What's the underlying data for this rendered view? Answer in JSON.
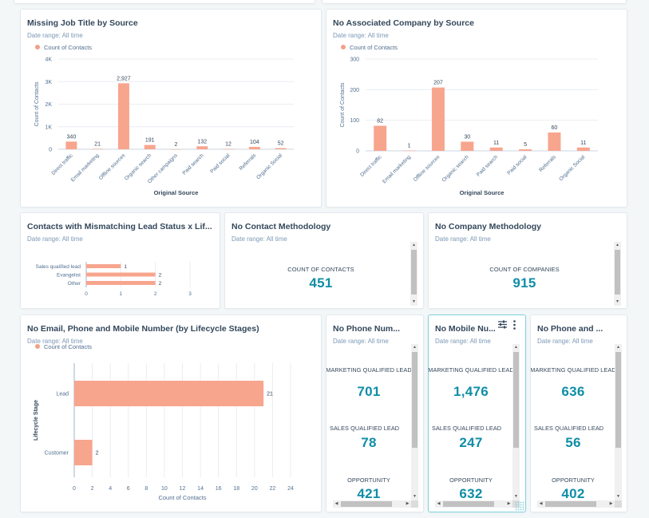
{
  "theme": {
    "bar_color": "#f8a58e",
    "accent_teal": "#0f8ea6",
    "grid_color": "#e9eef2"
  },
  "cards": {
    "job_title": {
      "title": "Missing Job Title by Source",
      "date_range": "Date range:  All time",
      "legend": "Count of Contacts"
    },
    "no_company": {
      "title": "No Associated Company by Source",
      "date_range": "Date range:  All time",
      "legend": "Count of Contacts"
    },
    "mismatch": {
      "title": "Contacts with Mismatching Lead Status x Lif...",
      "date_range": "Date range:  All time"
    },
    "contact_method": {
      "title": "No Contact Methodology",
      "date_range": "Date range:  All time",
      "kpi_label": "COUNT OF CONTACTS",
      "kpi_value": "451"
    },
    "company_method": {
      "title": "No Company Methodology",
      "date_range": "Date range:  All time",
      "kpi_label": "COUNT OF COMPANIES",
      "kpi_value": "915"
    },
    "no_email": {
      "title": "No Email, Phone and Mobile Number (by Lifecycle Stages)",
      "date_range": "Date range:  All time",
      "legend": "Count of Contacts"
    },
    "no_phone": {
      "title": "No Phone Num...",
      "date_range": "Date range:  All time",
      "metrics": [
        {
          "label": "MARKETING QUALIFIED LEAD",
          "value": "701"
        },
        {
          "label": "SALES QUALIFIED LEAD",
          "value": "78"
        },
        {
          "label": "OPPORTUNITY",
          "value": "421"
        }
      ]
    },
    "no_mobile": {
      "title": "No Mobile Nu...",
      "date_range": "Date range:  All time",
      "filter_icon": "filter-sliders-icon",
      "more_icon": "more-vertical-icon",
      "metrics": [
        {
          "label": "MARKETING QUALIFIED LEAD",
          "value": "1,476"
        },
        {
          "label": "SALES QUALIFIED LEAD",
          "value": "247"
        },
        {
          "label": "OPPORTUNITY",
          "value": "632"
        }
      ]
    },
    "no_phone_and": {
      "title": "No Phone and ...",
      "date_range": "Date range:  All time",
      "metrics": [
        {
          "label": "MARKETING QUALIFIED LEAD",
          "value": "636"
        },
        {
          "label": "SALES QUALIFIED LEAD",
          "value": "56"
        },
        {
          "label": "OPPORTUNITY",
          "value": "402"
        }
      ]
    }
  },
  "chart_data": [
    {
      "id": "job_title",
      "type": "bar",
      "title": "Missing Job Title by Source",
      "categories": [
        "Direct traffic",
        "Email marketing",
        "Offline sources",
        "Organic search",
        "Other campaigns",
        "Paid search",
        "Paid social",
        "Referrals",
        "Organic Social"
      ],
      "values": [
        340,
        21,
        2927,
        191,
        2,
        132,
        12,
        104,
        52
      ],
      "value_labels": [
        "340",
        "21",
        "2,927",
        "191",
        "2",
        "132",
        "12",
        "104",
        "52"
      ],
      "xlabel": "Original Source",
      "ylabel": "Count of Contacts",
      "ylim": [
        0,
        4000
      ],
      "yticks": [
        0,
        1000,
        2000,
        3000,
        4000
      ],
      "ytick_labels": [
        "0",
        "1K",
        "2K",
        "3K",
        "4K"
      ],
      "legend": "top-left",
      "grid": true
    },
    {
      "id": "no_company",
      "type": "bar",
      "title": "No Associated Company by Source",
      "categories": [
        "Direct traffic",
        "Email marketing",
        "Offline sources",
        "Organic search",
        "Paid search",
        "Paid social",
        "Referrals",
        "Organic Social"
      ],
      "values": [
        82,
        1,
        207,
        30,
        11,
        5,
        60,
        11
      ],
      "value_labels": [
        "82",
        "1",
        "207",
        "30",
        "11",
        "5",
        "60",
        "11"
      ],
      "xlabel": "Original Source",
      "ylabel": "Count of Contacts",
      "ylim": [
        0,
        300
      ],
      "yticks": [
        0,
        100,
        200,
        300
      ],
      "ytick_labels": [
        "0",
        "100",
        "200",
        "300"
      ],
      "legend": "top-left",
      "grid": true
    },
    {
      "id": "mismatch",
      "type": "bar",
      "orientation": "horizontal",
      "title": "Contacts with Mismatching Lead Status x Lif...",
      "categories": [
        "Sales qualified lead",
        "Evangelist",
        "Other"
      ],
      "values": [
        1,
        2,
        2
      ],
      "value_labels": [
        "1",
        "2",
        "2"
      ],
      "xlim": [
        0,
        3
      ],
      "xticks": [
        0,
        1,
        2,
        3
      ],
      "grid": true
    },
    {
      "id": "no_email",
      "type": "bar",
      "orientation": "horizontal",
      "title": "No Email, Phone and Mobile Number (by Lifecycle Stages)",
      "categories": [
        "Lead",
        "Customer"
      ],
      "values": [
        21,
        2
      ],
      "value_labels": [
        "21",
        "2"
      ],
      "xlabel": "Count of Contacts",
      "ylabel": "Lifecycle Stage",
      "xlim": [
        0,
        24
      ],
      "xticks": [
        0,
        2,
        4,
        6,
        8,
        10,
        12,
        14,
        16,
        18,
        20,
        22,
        24
      ],
      "legend": "top-left",
      "grid": true
    }
  ]
}
